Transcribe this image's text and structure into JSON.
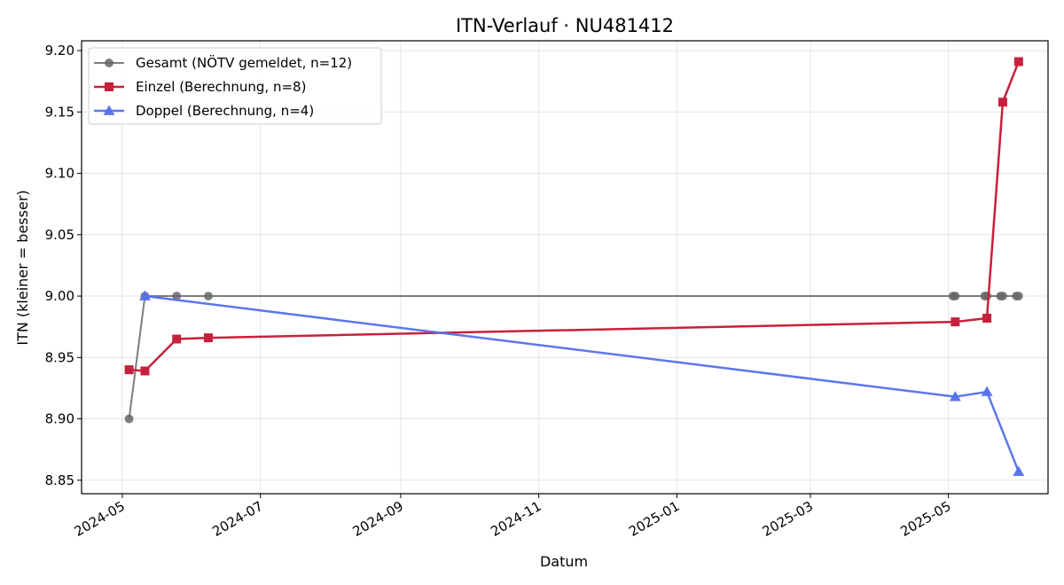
{
  "chart_data": {
    "type": "line",
    "title": "ITN-Verlauf · NU481412",
    "xlabel": "Datum",
    "ylabel": "ITN  (kleiner = besser)",
    "x_type": "date",
    "xlim": [
      "2024-04-13",
      "2025-06-14"
    ],
    "ylim": [
      8.839,
      9.208
    ],
    "x_ticks": [
      "2024-05-01",
      "2024-07-01",
      "2024-09-01",
      "2024-11-01",
      "2025-01-01",
      "2025-03-01",
      "2025-05-01"
    ],
    "x_tick_labels": [
      "2024-05",
      "2024-07",
      "2024-09",
      "2024-11",
      "2025-01",
      "2025-03",
      "2025-05"
    ],
    "y_ticks": [
      8.85,
      8.9,
      8.95,
      9.0,
      9.05,
      9.1,
      9.15,
      9.2
    ],
    "y_tick_labels": [
      "8.85",
      "8.90",
      "8.95",
      "9.00",
      "9.05",
      "9.10",
      "9.15",
      "9.20"
    ],
    "grid": true,
    "legend_position": "top-left",
    "series": [
      {
        "name": "Gesamt (NÖTV gemeldet, n=12)",
        "color": "#666666",
        "marker": "circle",
        "x": [
          "2024-05-04",
          "2024-05-11",
          "2024-05-25",
          "2024-06-08",
          "2025-05-03",
          "2025-05-04",
          "2025-05-17",
          "2025-05-18",
          "2025-05-24",
          "2025-05-25",
          "2025-05-31",
          "2025-06-01"
        ],
        "y": [
          8.9,
          9.0,
          9.0,
          9.0,
          9.0,
          9.0,
          9.0,
          9.0,
          9.0,
          9.0,
          9.0,
          9.0
        ]
      },
      {
        "name": "Einzel (Berechnung, n=8)",
        "color": "#c8203c",
        "marker": "square",
        "x": [
          "2024-05-04",
          "2024-05-11",
          "2024-05-25",
          "2024-06-08",
          "2025-05-04",
          "2025-05-18",
          "2025-05-25",
          "2025-06-01"
        ],
        "y": [
          8.94,
          8.939,
          8.965,
          8.966,
          8.979,
          8.982,
          9.158,
          9.191
        ]
      },
      {
        "name": "Doppel (Berechnung, n=4)",
        "color": "#5470ee",
        "marker": "triangle",
        "x": [
          "2024-05-11",
          "2025-05-04",
          "2025-05-18",
          "2025-06-01"
        ],
        "y": [
          9.0,
          8.918,
          8.922,
          8.857
        ]
      }
    ]
  }
}
